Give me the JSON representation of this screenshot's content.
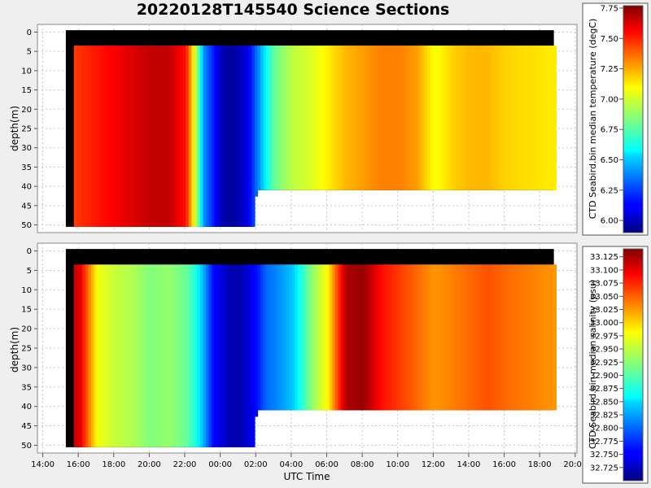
{
  "title": "20220128T145540 Science Sections",
  "colors": {
    "background": "#efefef",
    "plot_bg": "#ffffff",
    "no_data": "#000000",
    "grid": "#c8c8c8"
  },
  "chart_data": [
    {
      "type": "heatmap",
      "name": "temperature",
      "ylabel": "depth(m)",
      "ylim": [
        52,
        -2
      ],
      "yticks": [
        "0",
        "5",
        "10",
        "15",
        "20",
        "25",
        "30",
        "35",
        "40",
        "45",
        "50"
      ],
      "colorbar_label": "CTD Seabird.bin median temperature (degC)",
      "colorbar_range": [
        5.9,
        7.77
      ],
      "colorbar_ticks": [
        "6.00",
        "6.25",
        "6.50",
        "6.75",
        "7.00",
        "7.25",
        "7.50",
        "7.75"
      ],
      "colorbar_tick_values": [
        6.0,
        6.25,
        6.5,
        6.75,
        7.0,
        7.25,
        7.5,
        7.75
      ],
      "time_hours": [
        15.3,
        16.0,
        17.0,
        18.0,
        19.0,
        20.0,
        21.0,
        22.0,
        22.5,
        23.0,
        23.5,
        24.0,
        24.5,
        25.0,
        25.5,
        26.0,
        26.5,
        27.0,
        28.0,
        29.0,
        30.0,
        31.0,
        32.0,
        33.0,
        34.0,
        35.0,
        36.0,
        37.0,
        38.0,
        39.0,
        40.0,
        42.8
      ],
      "values": [
        7.4,
        7.45,
        7.5,
        7.55,
        7.6,
        7.65,
        7.65,
        7.5,
        7.0,
        6.4,
        6.2,
        6.0,
        5.95,
        6.0,
        6.1,
        6.35,
        6.6,
        6.8,
        6.95,
        7.0,
        7.1,
        7.2,
        7.25,
        7.3,
        7.3,
        7.25,
        7.05,
        7.15,
        7.2,
        7.2,
        7.15,
        7.1
      ],
      "max_depth_by_hour": [
        [
          15.3,
          50.5
        ],
        [
          25.9,
          50.5
        ],
        [
          25.95,
          41
        ],
        [
          42.8,
          41
        ]
      ]
    },
    {
      "type": "heatmap",
      "name": "salinity",
      "xlabel": "UTC Time",
      "ylabel": "depth(m)",
      "ylim": [
        52,
        -2
      ],
      "xlim": [
        13.7,
        44.1
      ],
      "xticks": [
        "14:00",
        "16:00",
        "18:00",
        "20:00",
        "22:00",
        "00:00",
        "02:00",
        "04:00",
        "06:00",
        "08:00",
        "10:00",
        "12:00",
        "14:00",
        "16:00",
        "18:00",
        "20:00"
      ],
      "xtick_hours": [
        14,
        16,
        18,
        20,
        22,
        24,
        26,
        28,
        30,
        32,
        34,
        36,
        38,
        40,
        42,
        44
      ],
      "yticks": [
        "0",
        "5",
        "10",
        "15",
        "20",
        "25",
        "30",
        "35",
        "40",
        "45",
        "50"
      ],
      "colorbar_label": "CTD Seabird.bin median salinity (psu)",
      "colorbar_range": [
        32.7,
        33.14
      ],
      "colorbar_ticks": [
        "32.725",
        "32.750",
        "32.775",
        "32.800",
        "32.825",
        "32.850",
        "32.875",
        "32.900",
        "32.925",
        "32.950",
        "32.975",
        "33.000",
        "33.025",
        "33.050",
        "33.075",
        "33.100",
        "33.125"
      ],
      "colorbar_tick_values": [
        32.725,
        32.75,
        32.775,
        32.8,
        32.825,
        32.85,
        32.875,
        32.9,
        32.925,
        32.95,
        32.975,
        33.0,
        33.025,
        33.05,
        33.075,
        33.1,
        33.125
      ],
      "time_hours": [
        15.3,
        16.0,
        17.0,
        18.0,
        19.0,
        20.0,
        21.0,
        22.0,
        22.5,
        23.0,
        23.5,
        24.0,
        24.5,
        25.0,
        25.5,
        26.0,
        26.5,
        27.0,
        28.0,
        29.0,
        30.0,
        31.0,
        32.0,
        33.0,
        34.0,
        35.0,
        36.0,
        37.0,
        38.0,
        39.0,
        40.0,
        42.8
      ],
      "values": [
        33.12,
        33.1,
        32.97,
        32.95,
        32.94,
        32.92,
        32.93,
        32.91,
        32.88,
        32.83,
        32.76,
        32.74,
        32.72,
        32.72,
        32.74,
        32.76,
        32.8,
        32.81,
        32.84,
        32.92,
        32.98,
        33.12,
        33.13,
        33.08,
        33.06,
        33.04,
        33.02,
        33.03,
        33.04,
        33.05,
        33.04,
        33.02
      ],
      "max_depth_by_hour": [
        [
          15.3,
          50.5
        ],
        [
          25.9,
          50.5
        ],
        [
          25.95,
          41
        ],
        [
          42.8,
          41
        ]
      ]
    }
  ]
}
